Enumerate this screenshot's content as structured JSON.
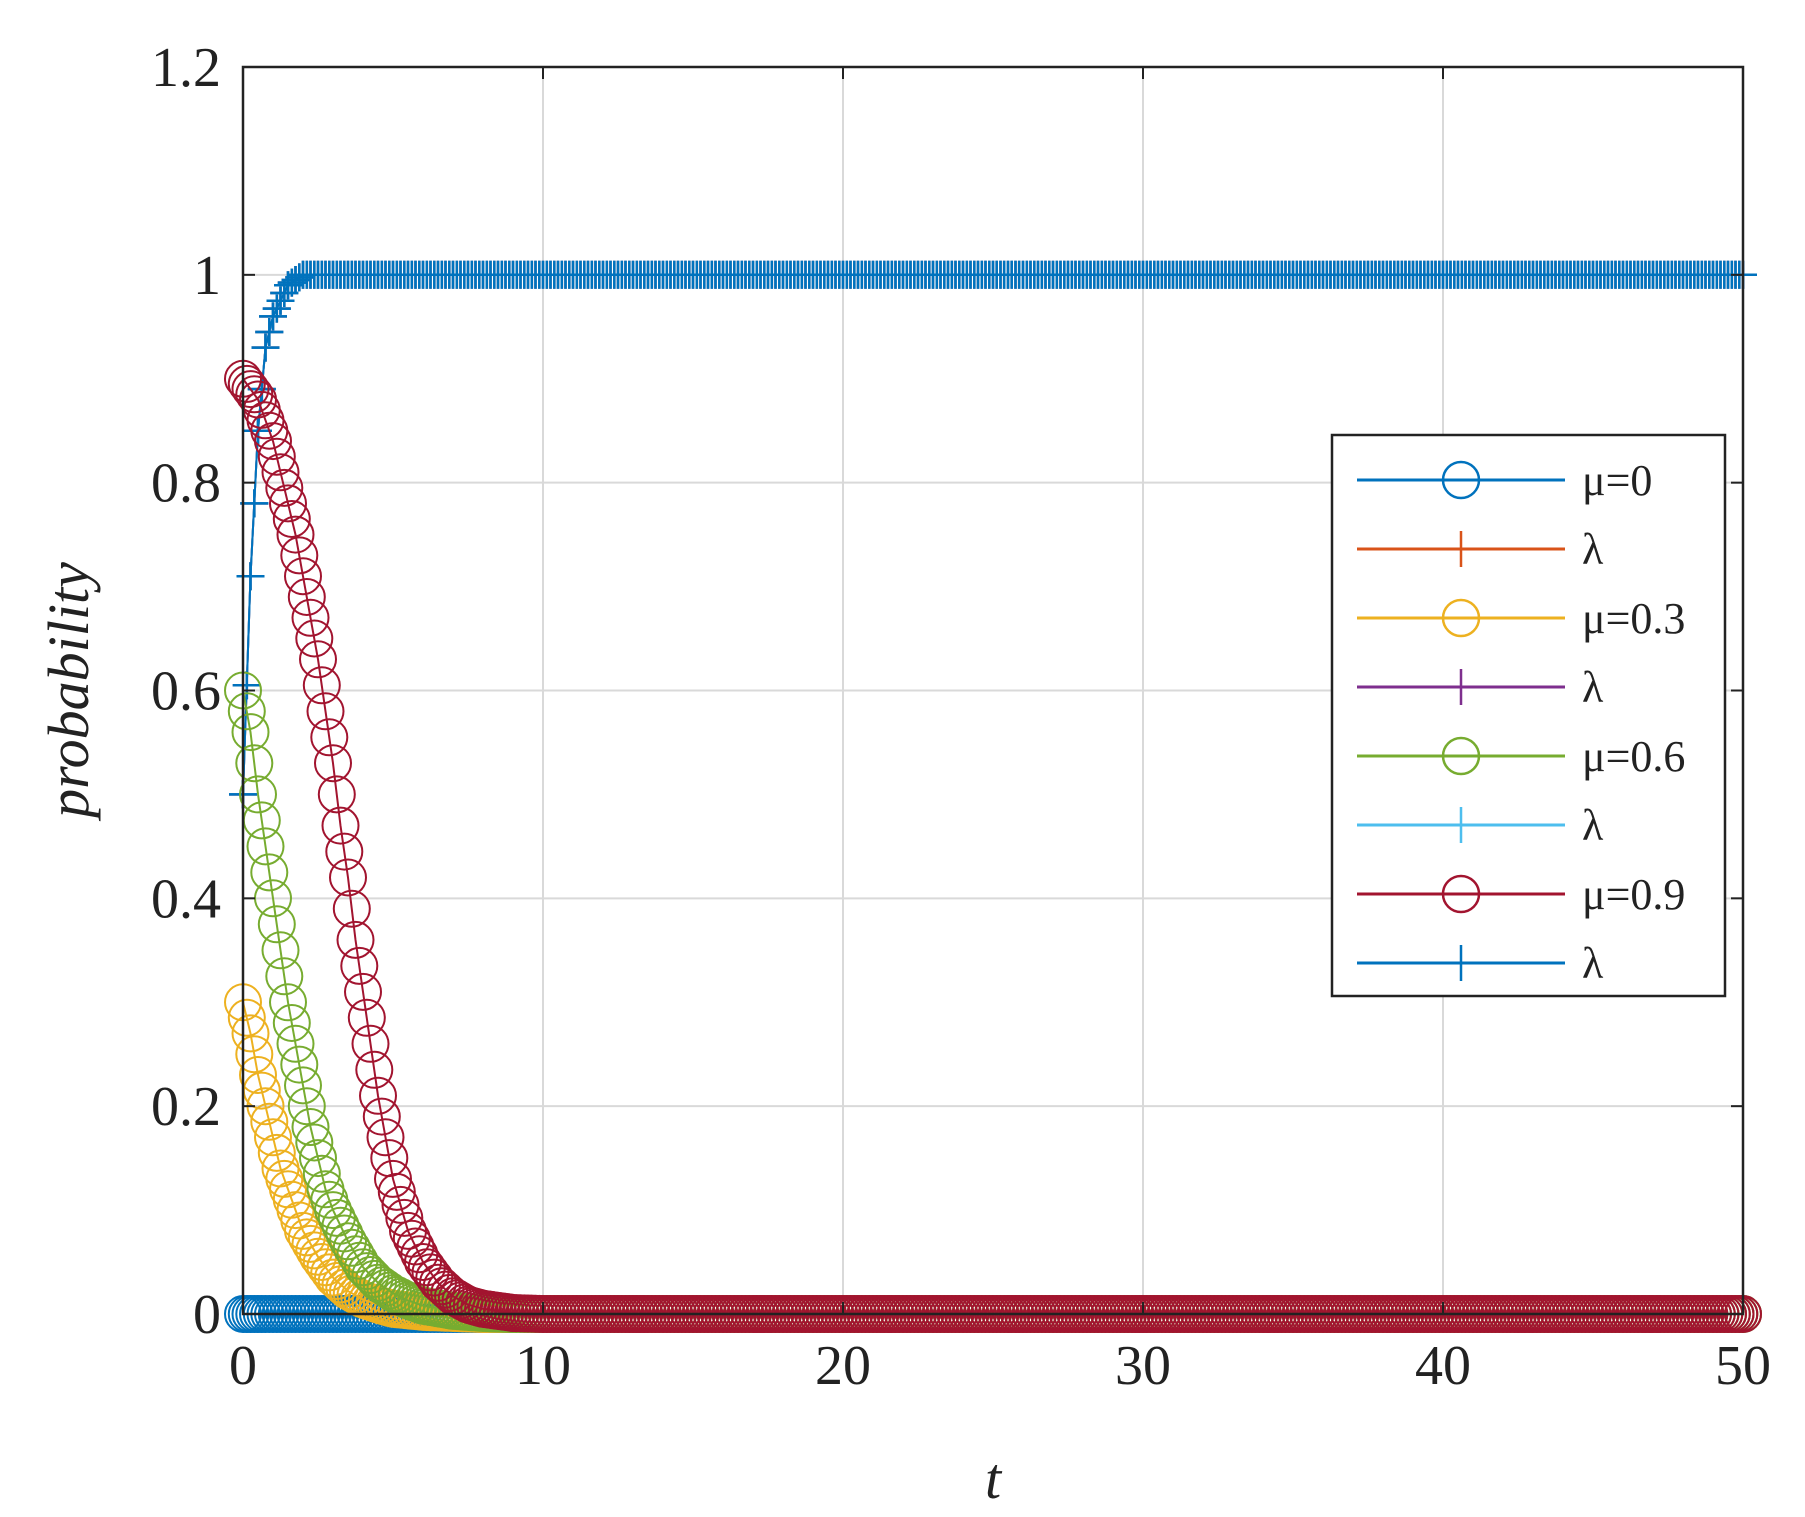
{
  "chart_data": {
    "type": "line",
    "title": "",
    "xlabel": "t",
    "ylabel": "probability",
    "xlim": [
      0,
      50
    ],
    "ylim": [
      0,
      1.2
    ],
    "xticks": [
      0,
      10,
      20,
      30,
      40,
      50
    ],
    "yticks": [
      0,
      0.2,
      0.4,
      0.6,
      0.8,
      1,
      1.2
    ],
    "xtick_labels": [
      "0",
      "10",
      "20",
      "30",
      "40",
      "50"
    ],
    "ytick_labels": [
      "0",
      "0.2",
      "0.4",
      "0.6",
      "0.8",
      "1",
      "1.2"
    ],
    "grid": true,
    "legend_position": "right",
    "series": [
      {
        "name": "μ=0",
        "marker": "circle",
        "color": "#0072BD",
        "x": [
          0,
          0.25,
          0.5,
          0.75,
          1,
          1.25,
          1.5,
          1.75,
          2,
          2.5,
          3,
          3.5,
          4,
          5,
          6,
          8,
          10,
          15,
          20,
          25,
          30,
          35,
          40,
          45,
          50
        ],
        "y": [
          0,
          0,
          0,
          0,
          0,
          0,
          0,
          0,
          0,
          0,
          0,
          0,
          0,
          0,
          0,
          0,
          0,
          0,
          0,
          0,
          0,
          0,
          0,
          0,
          0
        ]
      },
      {
        "name": "λ",
        "marker": "plus",
        "color": "#D95319",
        "x": [
          0,
          0.25,
          0.5,
          0.75,
          1,
          1.5,
          2,
          2.5,
          3,
          4,
          5,
          7.5,
          10,
          15,
          20,
          25,
          30,
          35,
          40,
          45,
          50
        ],
        "y": [
          0.5,
          0.71,
          0.85,
          0.93,
          0.96,
          0.99,
          1,
          1,
          1,
          1,
          1,
          1,
          1,
          1,
          1,
          1,
          1,
          1,
          1,
          1,
          1
        ]
      },
      {
        "name": "μ=0.3",
        "marker": "circle",
        "color": "#EDB120",
        "x": [
          0,
          0.25,
          0.5,
          0.75,
          1,
          1.25,
          1.5,
          1.75,
          2,
          2.5,
          3,
          3.5,
          4,
          4.5,
          5,
          6,
          7,
          8,
          10,
          15,
          20,
          25,
          30,
          35,
          40,
          45,
          50
        ],
        "y": [
          0.3,
          0.27,
          0.23,
          0.2,
          0.17,
          0.14,
          0.12,
          0.1,
          0.08,
          0.055,
          0.035,
          0.022,
          0.014,
          0.009,
          0.005,
          0.002,
          0.001,
          0,
          0,
          0,
          0,
          0,
          0,
          0,
          0,
          0,
          0
        ]
      },
      {
        "name": "λ",
        "marker": "plus",
        "color": "#7E2F8E",
        "x": [
          0,
          0.25,
          0.5,
          0.75,
          1,
          1.5,
          2,
          2.5,
          3,
          4,
          5,
          7.5,
          10,
          15,
          20,
          25,
          30,
          35,
          40,
          45,
          50
        ],
        "y": [
          0.5,
          0.71,
          0.85,
          0.93,
          0.96,
          0.99,
          1,
          1,
          1,
          1,
          1,
          1,
          1,
          1,
          1,
          1,
          1,
          1,
          1,
          1,
          1
        ]
      },
      {
        "name": "μ=0.6",
        "marker": "circle",
        "color": "#77AC30",
        "x": [
          0,
          0.25,
          0.5,
          0.75,
          1,
          1.25,
          1.5,
          1.75,
          2,
          2.25,
          2.5,
          2.75,
          3,
          3.5,
          4,
          4.5,
          5,
          5.5,
          6,
          7,
          8,
          9,
          10,
          15,
          20,
          25,
          30,
          35,
          40,
          45,
          50
        ],
        "y": [
          0.6,
          0.56,
          0.5,
          0.45,
          0.4,
          0.35,
          0.3,
          0.26,
          0.22,
          0.18,
          0.15,
          0.12,
          0.1,
          0.07,
          0.045,
          0.03,
          0.02,
          0.013,
          0.008,
          0.003,
          0.001,
          0,
          0,
          0,
          0,
          0,
          0,
          0,
          0,
          0,
          0
        ]
      },
      {
        "name": "λ",
        "marker": "plus",
        "color": "#4DBEEE",
        "x": [
          0,
          0.25,
          0.5,
          0.75,
          1,
          1.5,
          2,
          2.5,
          3,
          4,
          5,
          7.5,
          10,
          15,
          20,
          25,
          30,
          35,
          40,
          45,
          50
        ],
        "y": [
          0.5,
          0.71,
          0.85,
          0.93,
          0.96,
          0.99,
          1,
          1,
          1,
          1,
          1,
          1,
          1,
          1,
          1,
          1,
          1,
          1,
          1,
          1,
          1
        ]
      },
      {
        "name": "μ=0.9",
        "marker": "circle",
        "color": "#A2142F",
        "x": [
          0,
          0.25,
          0.5,
          0.75,
          1,
          1.25,
          1.5,
          1.75,
          2,
          2.25,
          2.5,
          2.75,
          3,
          3.25,
          3.5,
          3.75,
          4,
          4.25,
          4.5,
          4.75,
          5,
          5.5,
          6,
          6.5,
          7,
          7.5,
          8,
          9,
          10,
          12,
          15,
          20,
          25,
          30,
          35,
          40,
          45,
          50
        ],
        "y": [
          0.9,
          0.89,
          0.88,
          0.86,
          0.84,
          0.81,
          0.78,
          0.75,
          0.71,
          0.67,
          0.63,
          0.58,
          0.53,
          0.47,
          0.42,
          0.36,
          0.31,
          0.26,
          0.21,
          0.17,
          0.13,
          0.08,
          0.05,
          0.03,
          0.017,
          0.009,
          0.005,
          0.001,
          0,
          0,
          0,
          0,
          0,
          0,
          0,
          0,
          0,
          0
        ]
      },
      {
        "name": "λ",
        "marker": "plus",
        "color": "#0072BD",
        "x": [
          0,
          0.25,
          0.5,
          0.75,
          1,
          1.5,
          2,
          2.5,
          3,
          4,
          5,
          7.5,
          10,
          15,
          20,
          25,
          30,
          35,
          40,
          45,
          50
        ],
        "y": [
          0.5,
          0.71,
          0.85,
          0.93,
          0.96,
          0.99,
          1,
          1,
          1,
          1,
          1,
          1,
          1,
          1,
          1,
          1,
          1,
          1,
          1,
          1,
          1
        ]
      }
    ]
  }
}
